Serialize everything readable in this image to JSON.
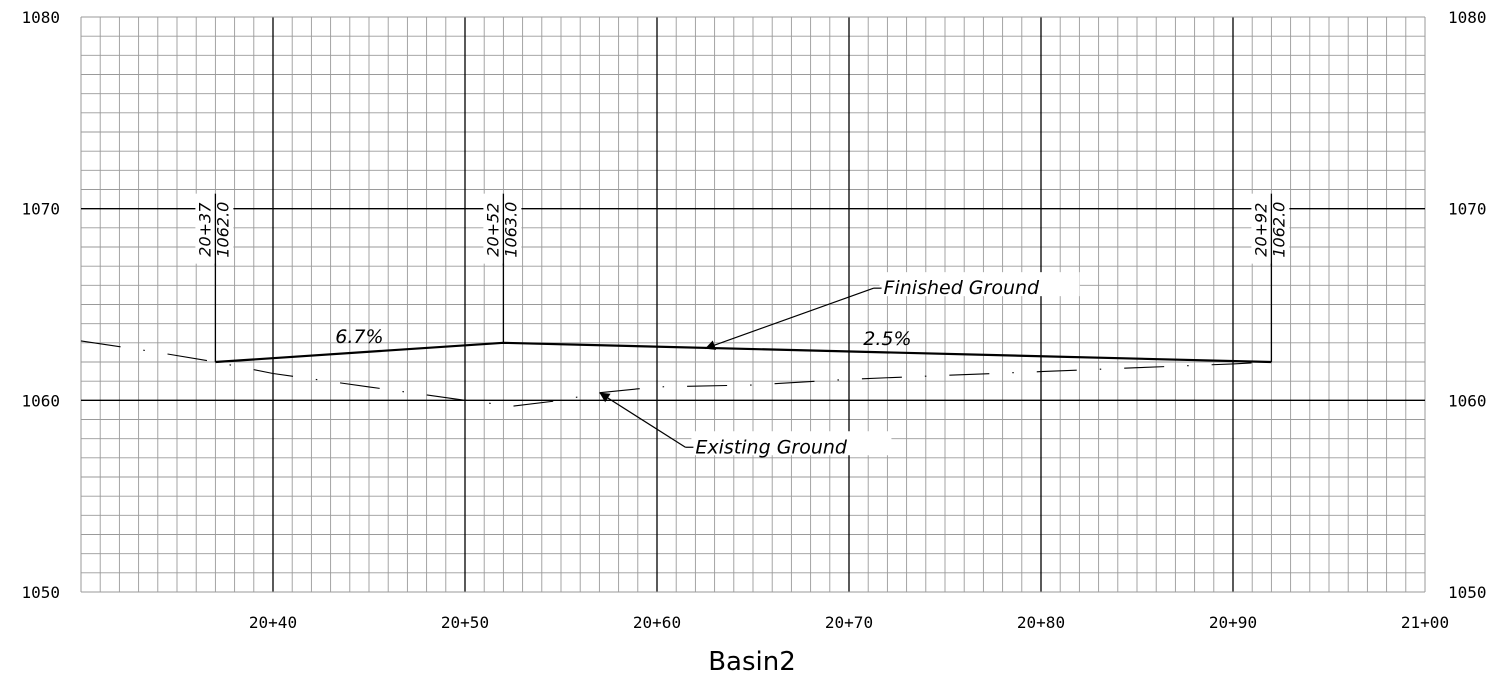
{
  "chart_data": {
    "type": "line",
    "title": "Basin2",
    "xlim": [
      2030,
      2100
    ],
    "ylim": [
      1050,
      1080
    ],
    "grid": true,
    "x_ticks": [
      {
        "value": 2040,
        "label": "20+40"
      },
      {
        "value": 2050,
        "label": "20+50"
      },
      {
        "value": 2060,
        "label": "20+60"
      },
      {
        "value": 2070,
        "label": "20+70"
      },
      {
        "value": 2080,
        "label": "20+80"
      },
      {
        "value": 2090,
        "label": "20+90"
      },
      {
        "value": 2100,
        "label": "21+00"
      }
    ],
    "y_ticks": [
      {
        "value": 1050,
        "label": "1050"
      },
      {
        "value": 1060,
        "label": "1060"
      },
      {
        "value": 1070,
        "label": "1070"
      },
      {
        "value": 1080,
        "label": "1080"
      }
    ],
    "series": [
      {
        "name": "Finished Ground",
        "style": "solid",
        "x": [
          2037,
          2052,
          2092
        ],
        "y": [
          1062.0,
          1063.0,
          1062.0
        ]
      },
      {
        "name": "Existing Ground",
        "style": "dashdot",
        "x": [
          2030,
          2034,
          2037,
          2040,
          2045,
          2050,
          2052.5,
          2055,
          2057,
          2060,
          2065,
          2070,
          2075,
          2080,
          2085,
          2090,
          2092
        ],
        "y": [
          1063.1,
          1062.5,
          1062.0,
          1061.4,
          1060.7,
          1060.0,
          1059.7,
          1060.0,
          1060.4,
          1060.7,
          1060.8,
          1061.1,
          1061.3,
          1061.5,
          1061.7,
          1061.9,
          1062.0
        ]
      }
    ],
    "pvi_labels": [
      {
        "x": 2037,
        "y": 1062.0,
        "station": "20+37",
        "elevation": "1062.0"
      },
      {
        "x": 2052,
        "y": 1063.0,
        "station": "20+52",
        "elevation": "1063.0"
      },
      {
        "x": 2092,
        "y": 1062.0,
        "station": "20+92",
        "elevation": "1062.0"
      }
    ],
    "grade_labels": [
      {
        "text": "6.7%",
        "x": 2044.5,
        "y": 1063.0
      },
      {
        "text": "2.5%",
        "x": 2072,
        "y": 1062.9
      }
    ],
    "annotations": [
      {
        "text": "Finished Ground",
        "x": 2071.8,
        "y": 1065.8,
        "arrow_x": 2062.5,
        "arrow_y": 1062.7
      },
      {
        "text": "Existing Ground",
        "x": 2062,
        "y": 1057.5,
        "arrow_x": 2057,
        "arrow_y": 1060.4
      }
    ]
  }
}
